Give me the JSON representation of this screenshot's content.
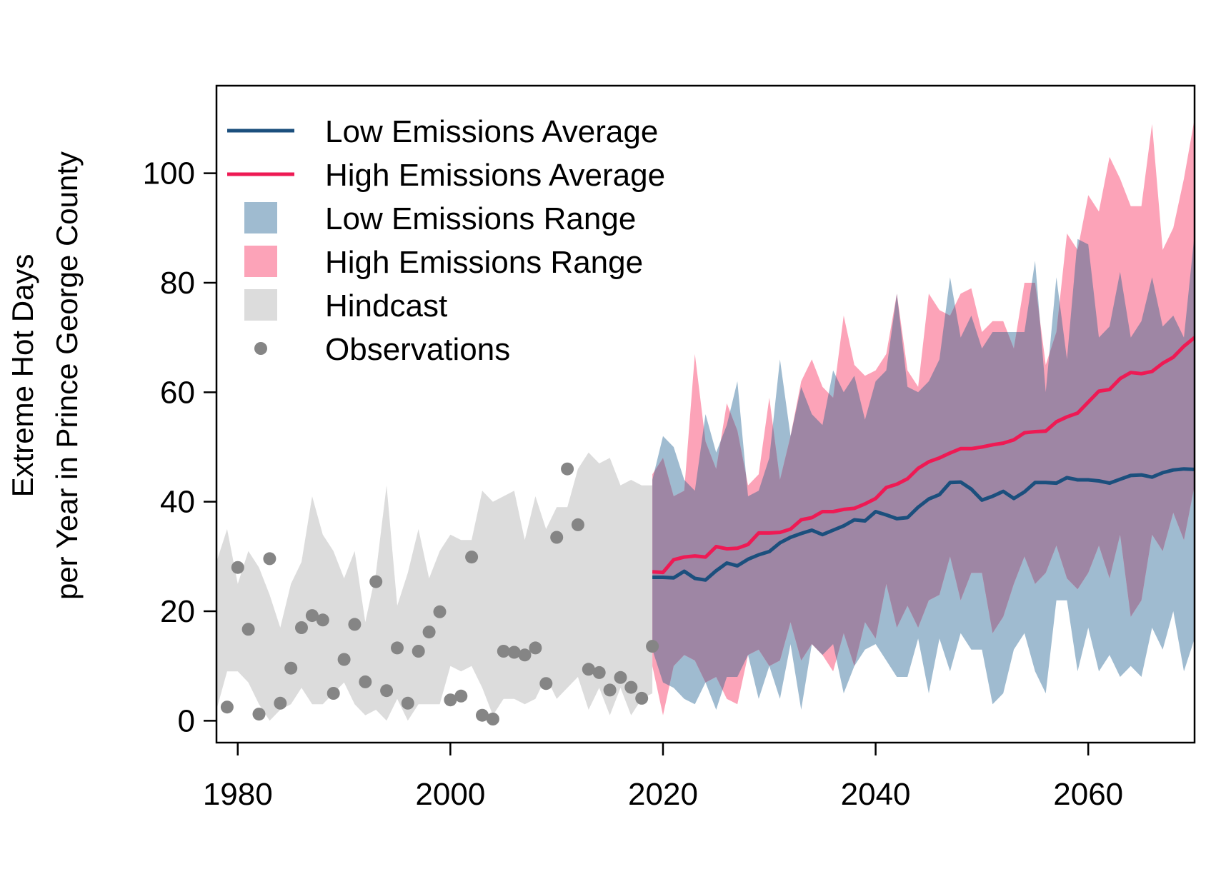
{
  "chart_data": {
    "type": "area",
    "title": "",
    "xlabel": "",
    "ylabel_lines": [
      "Extreme Hot Days",
      "per Year in Prince George County"
    ],
    "xlim": [
      1978,
      2070
    ],
    "ylim": [
      -4,
      116
    ],
    "x_ticks": [
      1980,
      2000,
      2020,
      2040,
      2060
    ],
    "y_ticks": [
      0,
      20,
      40,
      60,
      80,
      100
    ],
    "legend_position": "top-left",
    "legend": [
      {
        "key": "low_avg",
        "label": "Low Emissions Average",
        "symbol": "line",
        "color": "#1b4f7d"
      },
      {
        "key": "high_avg",
        "label": "High Emissions Average",
        "symbol": "line",
        "color": "#ee1a54"
      },
      {
        "key": "low_range",
        "label": "Low Emissions Range",
        "symbol": "box",
        "color": "#9fbbd0"
      },
      {
        "key": "high_range",
        "label": "High Emissions Range",
        "symbol": "box",
        "color": "#fca3b8"
      },
      {
        "key": "hindcast",
        "label": "Hindcast",
        "symbol": "box",
        "color": "#dcdcdc"
      },
      {
        "key": "obs",
        "label": "Observations",
        "symbol": "point",
        "color": "#858585"
      }
    ],
    "colors": {
      "low_avg": "#1b4f7d",
      "high_avg": "#ee1a54",
      "low_range": "#9fbbd0",
      "high_range": "#fca3b8",
      "overlap": "#9e86a4",
      "hindcast": "#dcdcdc",
      "obs": "#858585"
    },
    "hindcast": {
      "x": [
        1978,
        1979,
        1980,
        1981,
        1982,
        1983,
        1984,
        1985,
        1986,
        1987,
        1988,
        1989,
        1990,
        1991,
        1992,
        1993,
        1994,
        1995,
        1996,
        1997,
        1998,
        1999,
        2000,
        2001,
        2002,
        2003,
        2004,
        2005,
        2006,
        2007,
        2008,
        2009,
        2010,
        2011,
        2012,
        2013,
        2014,
        2015,
        2016,
        2017,
        2018,
        2019
      ],
      "upper": [
        29,
        35,
        25,
        31,
        28,
        23,
        17,
        25,
        29,
        41,
        34,
        31,
        26,
        31,
        18,
        27,
        43,
        21,
        27,
        35,
        26,
        31,
        34,
        33,
        33,
        42,
        40,
        41,
        42,
        33,
        41,
        35,
        39,
        39,
        46,
        49,
        47,
        48,
        43,
        44,
        43,
        43
      ],
      "lower": [
        2,
        9,
        9,
        7,
        3,
        0,
        2,
        3,
        6,
        3,
        3,
        5,
        7,
        3,
        1,
        2,
        0,
        4,
        0,
        3,
        3,
        3,
        10,
        9,
        10,
        6,
        1,
        4,
        4,
        3,
        4,
        8,
        4,
        6,
        8,
        2,
        6,
        1,
        6,
        1,
        4,
        5
      ]
    },
    "low_range": {
      "x": [
        2019,
        2020,
        2021,
        2022,
        2023,
        2024,
        2025,
        2026,
        2027,
        2028,
        2029,
        2030,
        2031,
        2032,
        2033,
        2034,
        2035,
        2036,
        2037,
        2038,
        2039,
        2040,
        2041,
        2042,
        2043,
        2044,
        2045,
        2046,
        2047,
        2048,
        2049,
        2050,
        2051,
        2052,
        2053,
        2054,
        2055,
        2056,
        2057,
        2058,
        2059,
        2060,
        2061,
        2062,
        2063,
        2064,
        2065,
        2066,
        2067,
        2068,
        2069,
        2070
      ],
      "upper": [
        44,
        52,
        50,
        44,
        42,
        56,
        49,
        54,
        62,
        41,
        42,
        48,
        66,
        52,
        61,
        56,
        54,
        64,
        60,
        63,
        55,
        62,
        64,
        78,
        61,
        60,
        62,
        66,
        81,
        70,
        74,
        68,
        71,
        71,
        71,
        71,
        84,
        60,
        81,
        66,
        88,
        87,
        70,
        72,
        82,
        70,
        73,
        81,
        72,
        74,
        70,
        89
      ],
      "lower": [
        13,
        7,
        6,
        4,
        3,
        7,
        2,
        8,
        8,
        12,
        4,
        10,
        4,
        14,
        2,
        14,
        12,
        14,
        5,
        10,
        13,
        14,
        11,
        8,
        8,
        15,
        5,
        15,
        9,
        16,
        13,
        13,
        3,
        5,
        13,
        16,
        9,
        5,
        22,
        22,
        9,
        17,
        9,
        12,
        8,
        10,
        8,
        17,
        13,
        20,
        9,
        15
      ]
    },
    "high_range": {
      "x": [
        2019,
        2020,
        2021,
        2022,
        2023,
        2024,
        2025,
        2026,
        2027,
        2028,
        2029,
        2030,
        2031,
        2032,
        2033,
        2034,
        2035,
        2036,
        2037,
        2038,
        2039,
        2040,
        2041,
        2042,
        2043,
        2044,
        2045,
        2046,
        2047,
        2048,
        2049,
        2050,
        2051,
        2052,
        2053,
        2054,
        2055,
        2056,
        2057,
        2058,
        2059,
        2060,
        2061,
        2062,
        2063,
        2064,
        2065,
        2066,
        2067,
        2068,
        2069,
        2070
      ],
      "upper": [
        45,
        48,
        41,
        42,
        67,
        51,
        46,
        58,
        53,
        43,
        45,
        59,
        44,
        52,
        62,
        66,
        61,
        59,
        74,
        65,
        63,
        64,
        67,
        78,
        64,
        61,
        78,
        75,
        74,
        78,
        79,
        71,
        73,
        73,
        68,
        80,
        80,
        65,
        71,
        89,
        86,
        96,
        93,
        103,
        99,
        94,
        94,
        109,
        86,
        90,
        99,
        110
      ],
      "lower": [
        10,
        1,
        10,
        12,
        11,
        7,
        8,
        4,
        3,
        12,
        13,
        10,
        11,
        18,
        11,
        14,
        12,
        9,
        16,
        10,
        18,
        15,
        25,
        17,
        21,
        17,
        22,
        23,
        30,
        22,
        27,
        27,
        16,
        19,
        25,
        30,
        25,
        27,
        32,
        26,
        24,
        27,
        32,
        26,
        34,
        19,
        22,
        34,
        31,
        38,
        33,
        43
      ]
    },
    "low_avg": {
      "x": [
        2019,
        2020,
        2021,
        2022,
        2023,
        2024,
        2025,
        2026,
        2027,
        2028,
        2029,
        2030,
        2031,
        2032,
        2033,
        2034,
        2035,
        2036,
        2037,
        2038,
        2039,
        2040,
        2041,
        2042,
        2043,
        2044,
        2045,
        2046,
        2047,
        2048,
        2049,
        2050,
        2051,
        2052,
        2053,
        2054,
        2055,
        2056,
        2057,
        2058,
        2059,
        2060,
        2061,
        2062,
        2063,
        2064,
        2065,
        2066,
        2067,
        2068,
        2069,
        2070
      ],
      "y": [
        26.2,
        26.2,
        26.1,
        27.3,
        26.0,
        25.7,
        27.4,
        28.8,
        28.3,
        29.5,
        30.3,
        30.9,
        32.5,
        33.5,
        34.2,
        34.8,
        34.0,
        34.8,
        35.6,
        36.7,
        36.5,
        38.2,
        37.6,
        36.9,
        37.1,
        39.0,
        40.5,
        41.3,
        43.5,
        43.6,
        42.3,
        40.3,
        41.0,
        41.9,
        40.6,
        41.8,
        43.5,
        43.5,
        43.4,
        44.4,
        44.0,
        44.0,
        43.8,
        43.4,
        44.1,
        44.8,
        44.9,
        44.5,
        45.3,
        45.8,
        46.0,
        45.9
      ]
    },
    "high_avg": {
      "x": [
        2019,
        2020,
        2021,
        2022,
        2023,
        2024,
        2025,
        2026,
        2027,
        2028,
        2029,
        2030,
        2031,
        2032,
        2033,
        2034,
        2035,
        2036,
        2037,
        2038,
        2039,
        2040,
        2041,
        2042,
        2043,
        2044,
        2045,
        2046,
        2047,
        2048,
        2049,
        2050,
        2051,
        2052,
        2053,
        2054,
        2055,
        2056,
        2057,
        2058,
        2059,
        2060,
        2061,
        2062,
        2063,
        2064,
        2065,
        2066,
        2067,
        2068,
        2069,
        2070
      ],
      "y": [
        27.2,
        27.1,
        29.4,
        29.9,
        30.1,
        29.9,
        31.8,
        31.4,
        31.5,
        32.2,
        34.3,
        34.3,
        34.4,
        35.0,
        36.7,
        37.1,
        38.2,
        38.2,
        38.6,
        38.8,
        39.6,
        40.6,
        42.6,
        43.2,
        44.2,
        46.1,
        47.3,
        48.0,
        48.9,
        49.7,
        49.7,
        50.0,
        50.4,
        50.7,
        51.3,
        52.6,
        52.8,
        52.9,
        54.6,
        55.5,
        56.2,
        58.2,
        60.2,
        60.5,
        62.5,
        63.6,
        63.4,
        63.8,
        65.3,
        66.4,
        68.4,
        70.0
      ]
    },
    "observations": {
      "x": [
        1979,
        1980,
        1981,
        1982,
        1983,
        1984,
        1985,
        1986,
        1987,
        1988,
        1989,
        1990,
        1991,
        1992,
        1993,
        1994,
        1995,
        1996,
        1997,
        1998,
        1999,
        2000,
        2001,
        2002,
        2003,
        2004,
        2005,
        2006,
        2007,
        2008,
        2009,
        2010,
        2011,
        2012,
        2013,
        2014,
        2015,
        2016,
        2017,
        2018,
        2019
      ],
      "y": [
        2.5,
        28,
        16.7,
        1.2,
        29.6,
        3.2,
        9.6,
        17,
        19.2,
        18.4,
        5,
        11.2,
        17.6,
        7.1,
        25.4,
        5.5,
        13.3,
        3.2,
        12.7,
        16.2,
        19.9,
        3.8,
        4.5,
        29.9,
        1,
        0.3,
        12.7,
        12.5,
        12,
        13.3,
        6.8,
        33.5,
        46,
        35.8,
        9.4,
        8.8,
        5.6,
        7.9,
        6.1,
        4.1,
        13.6
      ]
    }
  }
}
